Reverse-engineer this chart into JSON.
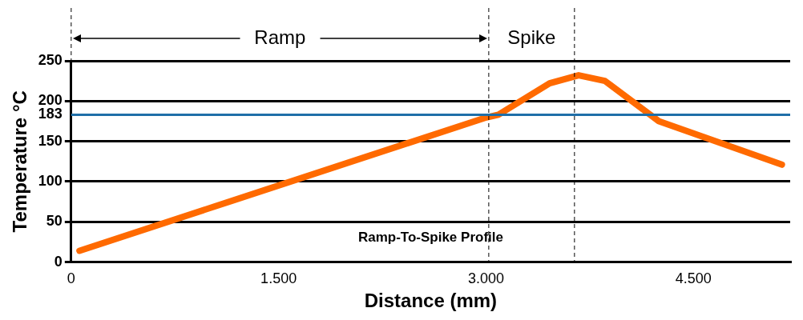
{
  "chart_data": {
    "type": "line",
    "xlabel": "Distance (mm)",
    "ylabel": "Temperature °C",
    "x": [
      0.06,
      2.99,
      3.09,
      3.46,
      3.67,
      3.86,
      4.25,
      5.14
    ],
    "series": [
      {
        "color": "#ff6a00",
        "values": [
          14,
          179,
          183,
          222,
          232,
          225,
          175,
          121
        ]
      }
    ],
    "xlim": [
      0,
      5.2
    ],
    "xticks": [
      0,
      {
        "value": 1.5,
        "label": "1.500"
      },
      {
        "value": 3,
        "label": "3.000"
      },
      {
        "value": 4.5,
        "label": "4.500"
      }
    ],
    "ylim": [
      0,
      250
    ],
    "yticks": [
      0,
      50,
      100,
      150,
      183,
      200,
      250
    ],
    "grid": "y",
    "marker": "none",
    "line_style": "solid",
    "legend": false,
    "ref_lines": [
      {
        "axis": "y",
        "value": 183,
        "color": "#1f6fa8",
        "line_style": "solid"
      },
      {
        "axis": "x",
        "value": 0,
        "color": "#000000",
        "line_style": "dashed"
      },
      {
        "axis": "x",
        "value": 3.02,
        "color": "#000000",
        "line_style": "dashed"
      },
      {
        "axis": "x",
        "value": 3.64,
        "color": "#000000",
        "line_style": "dashed"
      }
    ],
    "annotations": [
      "Ramp",
      "Spike",
      "Ramp-To-Spike Profile"
    ]
  }
}
